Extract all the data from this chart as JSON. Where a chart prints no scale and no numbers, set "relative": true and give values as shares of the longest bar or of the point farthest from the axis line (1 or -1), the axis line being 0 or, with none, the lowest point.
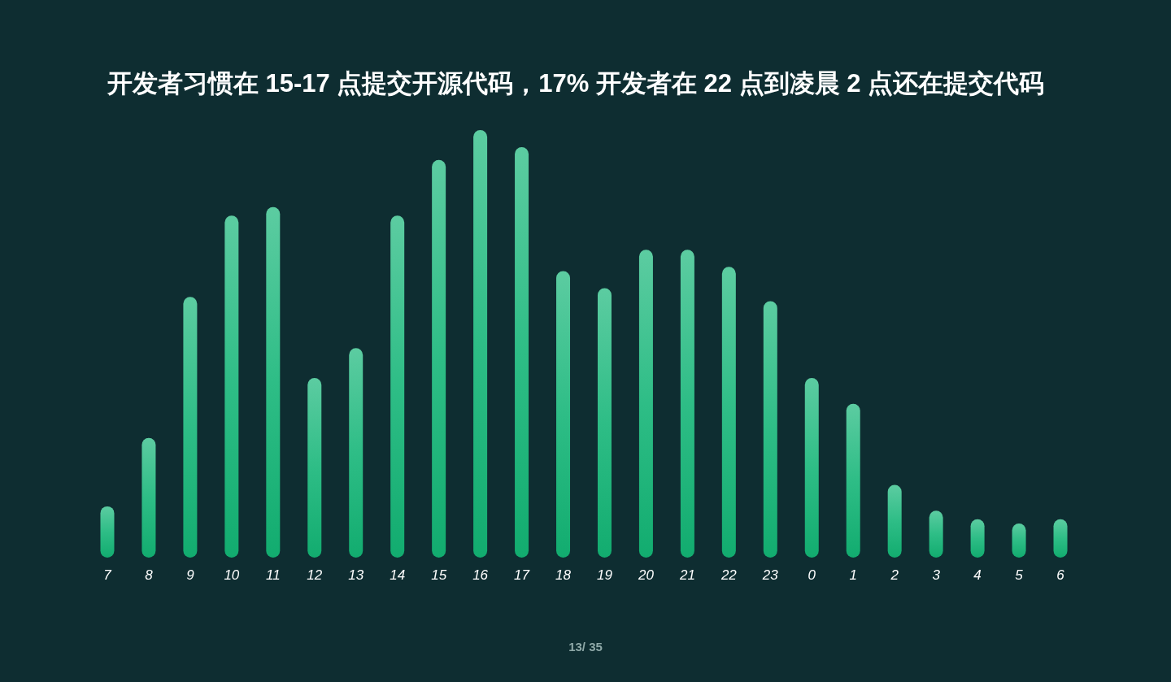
{
  "chart_data": {
    "type": "bar",
    "title": "开发者习惯在 15-17 点提交开源代码，17% 开发者在 22 点到凌晨 2 点还在提交代码",
    "categories": [
      "7",
      "8",
      "9",
      "10",
      "11",
      "12",
      "13",
      "14",
      "15",
      "16",
      "17",
      "18",
      "19",
      "20",
      "21",
      "22",
      "23",
      "0",
      "1",
      "2",
      "3",
      "4",
      "5",
      "6"
    ],
    "values": [
      0.12,
      0.28,
      0.61,
      0.8,
      0.82,
      0.42,
      0.49,
      0.8,
      0.93,
      1,
      0.96,
      0.67,
      0.63,
      0.72,
      0.72,
      0.68,
      0.6,
      0.42,
      0.36,
      0.17,
      0.11,
      0.09,
      0.08,
      0.09
    ],
    "color": "#2ebd86",
    "relative": true,
    "annotations": [
      "13/ 35"
    ]
  }
}
